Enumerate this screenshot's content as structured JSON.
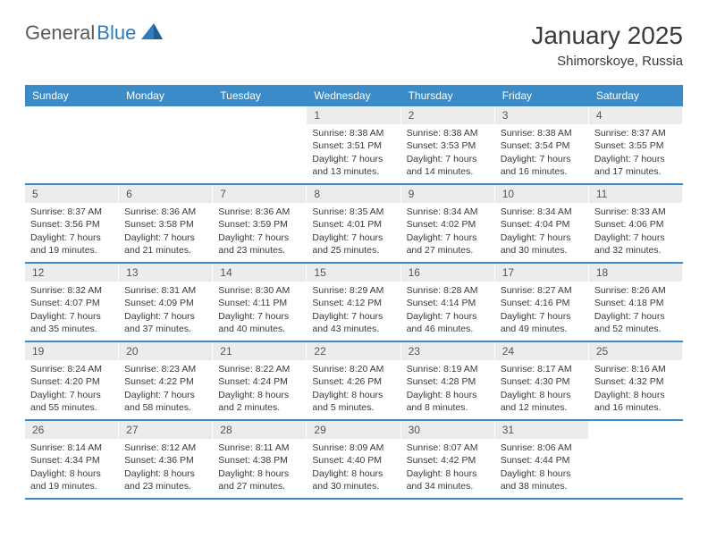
{
  "logo": {
    "textA": "General",
    "textB": "Blue"
  },
  "header": {
    "title": "January 2025",
    "location": "Shimorskoye, Russia"
  },
  "colors": {
    "header_bg": "#3b8bc9",
    "header_text": "#ffffff",
    "daynum_bg": "#ececec",
    "daynum_text": "#555555",
    "body_text": "#3a3a3a",
    "row_border": "#3b8bc9",
    "logo_gray": "#5a5a5a",
    "logo_blue": "#2f7bbf",
    "page_bg": "#ffffff"
  },
  "typography": {
    "title_fontsize": 28,
    "location_fontsize": 15,
    "dayhead_fontsize": 12,
    "daynum_fontsize": 12,
    "cell_fontsize": 10.5
  },
  "day_names": [
    "Sunday",
    "Monday",
    "Tuesday",
    "Wednesday",
    "Thursday",
    "Friday",
    "Saturday"
  ],
  "weeks": [
    [
      null,
      null,
      null,
      {
        "n": "1",
        "sunrise": "8:38 AM",
        "sunset": "3:51 PM",
        "dl1": "Daylight: 7 hours",
        "dl2": "and 13 minutes."
      },
      {
        "n": "2",
        "sunrise": "8:38 AM",
        "sunset": "3:53 PM",
        "dl1": "Daylight: 7 hours",
        "dl2": "and 14 minutes."
      },
      {
        "n": "3",
        "sunrise": "8:38 AM",
        "sunset": "3:54 PM",
        "dl1": "Daylight: 7 hours",
        "dl2": "and 16 minutes."
      },
      {
        "n": "4",
        "sunrise": "8:37 AM",
        "sunset": "3:55 PM",
        "dl1": "Daylight: 7 hours",
        "dl2": "and 17 minutes."
      }
    ],
    [
      {
        "n": "5",
        "sunrise": "8:37 AM",
        "sunset": "3:56 PM",
        "dl1": "Daylight: 7 hours",
        "dl2": "and 19 minutes."
      },
      {
        "n": "6",
        "sunrise": "8:36 AM",
        "sunset": "3:58 PM",
        "dl1": "Daylight: 7 hours",
        "dl2": "and 21 minutes."
      },
      {
        "n": "7",
        "sunrise": "8:36 AM",
        "sunset": "3:59 PM",
        "dl1": "Daylight: 7 hours",
        "dl2": "and 23 minutes."
      },
      {
        "n": "8",
        "sunrise": "8:35 AM",
        "sunset": "4:01 PM",
        "dl1": "Daylight: 7 hours",
        "dl2": "and 25 minutes."
      },
      {
        "n": "9",
        "sunrise": "8:34 AM",
        "sunset": "4:02 PM",
        "dl1": "Daylight: 7 hours",
        "dl2": "and 27 minutes."
      },
      {
        "n": "10",
        "sunrise": "8:34 AM",
        "sunset": "4:04 PM",
        "dl1": "Daylight: 7 hours",
        "dl2": "and 30 minutes."
      },
      {
        "n": "11",
        "sunrise": "8:33 AM",
        "sunset": "4:06 PM",
        "dl1": "Daylight: 7 hours",
        "dl2": "and 32 minutes."
      }
    ],
    [
      {
        "n": "12",
        "sunrise": "8:32 AM",
        "sunset": "4:07 PM",
        "dl1": "Daylight: 7 hours",
        "dl2": "and 35 minutes."
      },
      {
        "n": "13",
        "sunrise": "8:31 AM",
        "sunset": "4:09 PM",
        "dl1": "Daylight: 7 hours",
        "dl2": "and 37 minutes."
      },
      {
        "n": "14",
        "sunrise": "8:30 AM",
        "sunset": "4:11 PM",
        "dl1": "Daylight: 7 hours",
        "dl2": "and 40 minutes."
      },
      {
        "n": "15",
        "sunrise": "8:29 AM",
        "sunset": "4:12 PM",
        "dl1": "Daylight: 7 hours",
        "dl2": "and 43 minutes."
      },
      {
        "n": "16",
        "sunrise": "8:28 AM",
        "sunset": "4:14 PM",
        "dl1": "Daylight: 7 hours",
        "dl2": "and 46 minutes."
      },
      {
        "n": "17",
        "sunrise": "8:27 AM",
        "sunset": "4:16 PM",
        "dl1": "Daylight: 7 hours",
        "dl2": "and 49 minutes."
      },
      {
        "n": "18",
        "sunrise": "8:26 AM",
        "sunset": "4:18 PM",
        "dl1": "Daylight: 7 hours",
        "dl2": "and 52 minutes."
      }
    ],
    [
      {
        "n": "19",
        "sunrise": "8:24 AM",
        "sunset": "4:20 PM",
        "dl1": "Daylight: 7 hours",
        "dl2": "and 55 minutes."
      },
      {
        "n": "20",
        "sunrise": "8:23 AM",
        "sunset": "4:22 PM",
        "dl1": "Daylight: 7 hours",
        "dl2": "and 58 minutes."
      },
      {
        "n": "21",
        "sunrise": "8:22 AM",
        "sunset": "4:24 PM",
        "dl1": "Daylight: 8 hours",
        "dl2": "and 2 minutes."
      },
      {
        "n": "22",
        "sunrise": "8:20 AM",
        "sunset": "4:26 PM",
        "dl1": "Daylight: 8 hours",
        "dl2": "and 5 minutes."
      },
      {
        "n": "23",
        "sunrise": "8:19 AM",
        "sunset": "4:28 PM",
        "dl1": "Daylight: 8 hours",
        "dl2": "and 8 minutes."
      },
      {
        "n": "24",
        "sunrise": "8:17 AM",
        "sunset": "4:30 PM",
        "dl1": "Daylight: 8 hours",
        "dl2": "and 12 minutes."
      },
      {
        "n": "25",
        "sunrise": "8:16 AM",
        "sunset": "4:32 PM",
        "dl1": "Daylight: 8 hours",
        "dl2": "and 16 minutes."
      }
    ],
    [
      {
        "n": "26",
        "sunrise": "8:14 AM",
        "sunset": "4:34 PM",
        "dl1": "Daylight: 8 hours",
        "dl2": "and 19 minutes."
      },
      {
        "n": "27",
        "sunrise": "8:12 AM",
        "sunset": "4:36 PM",
        "dl1": "Daylight: 8 hours",
        "dl2": "and 23 minutes."
      },
      {
        "n": "28",
        "sunrise": "8:11 AM",
        "sunset": "4:38 PM",
        "dl1": "Daylight: 8 hours",
        "dl2": "and 27 minutes."
      },
      {
        "n": "29",
        "sunrise": "8:09 AM",
        "sunset": "4:40 PM",
        "dl1": "Daylight: 8 hours",
        "dl2": "and 30 minutes."
      },
      {
        "n": "30",
        "sunrise": "8:07 AM",
        "sunset": "4:42 PM",
        "dl1": "Daylight: 8 hours",
        "dl2": "and 34 minutes."
      },
      {
        "n": "31",
        "sunrise": "8:06 AM",
        "sunset": "4:44 PM",
        "dl1": "Daylight: 8 hours",
        "dl2": "and 38 minutes."
      },
      null
    ]
  ],
  "labels": {
    "sunrise": "Sunrise: ",
    "sunset": "Sunset: "
  }
}
